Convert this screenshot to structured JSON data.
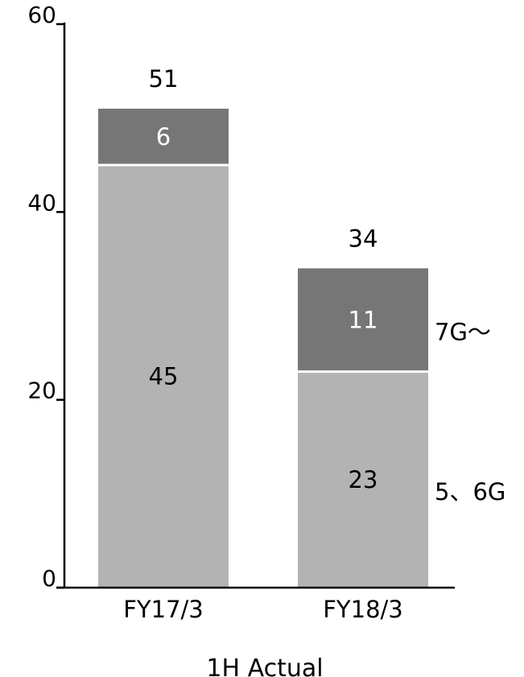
{
  "chart_data": {
    "type": "bar",
    "stacked": true,
    "title": "",
    "xlabel": "1H Actual",
    "ylabel": "",
    "ylim": [
      0,
      60
    ],
    "yticks": [
      0,
      20,
      40,
      60
    ],
    "grid": false,
    "legend": "none",
    "categories": [
      "FY17/3",
      "FY18/3"
    ],
    "series": [
      {
        "name": "5、6G",
        "values": [
          45,
          23
        ],
        "color": "#b3b3b3",
        "label_color": "#000000"
      },
      {
        "name": "7G～",
        "values": [
          6,
          11
        ],
        "color": "#767676",
        "label_color": "#ffffff"
      }
    ],
    "totals": [
      51,
      34
    ],
    "colors": {
      "axis": "#000000",
      "segment_divider": "#ffffff",
      "text": "#000000"
    }
  }
}
